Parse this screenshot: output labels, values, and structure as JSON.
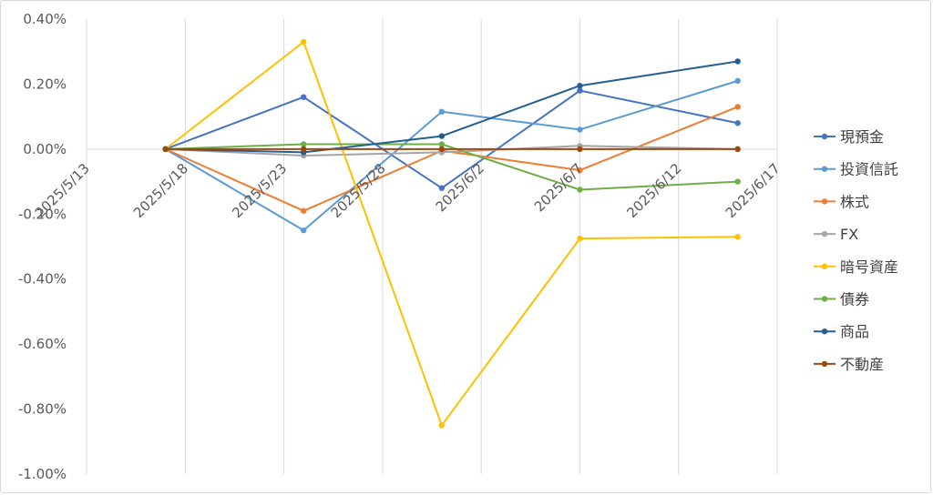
{
  "chart_data": {
    "type": "line",
    "title": "",
    "xlabel": "",
    "ylabel": "",
    "x_range": [
      "2025/5/13",
      "2025/6/17"
    ],
    "x_ticks": [
      "2025/5/13",
      "2025/5/18",
      "2025/5/23",
      "2025/5/28",
      "2025/6/2",
      "2025/6/7",
      "2025/6/12",
      "2025/6/17"
    ],
    "ylim": [
      -1.0,
      0.4
    ],
    "y_ticks": [
      0.4,
      0.2,
      0.0,
      -0.2,
      -0.4,
      -0.6,
      -0.8,
      -1.0
    ],
    "y_tick_labels": [
      "0.40%",
      "0.20%",
      "0.00%",
      "-0.20%",
      "-0.40%",
      "-0.60%",
      "-0.80%",
      "-1.00%"
    ],
    "y_unit": "%",
    "grid": {
      "vertical": true,
      "horizontal": false
    },
    "legend_position": "right",
    "x": [
      "2025/5/17",
      "2025/5/24",
      "2025/5/31",
      "2025/6/7",
      "2025/6/15"
    ],
    "series": [
      {
        "name": "現預金",
        "color": "#4472c4",
        "values": [
          0.0,
          0.16,
          -0.12,
          0.18,
          0.08
        ]
      },
      {
        "name": "投資信託",
        "color": "#5b9bd5",
        "values": [
          0.0,
          -0.25,
          0.115,
          0.06,
          0.21
        ]
      },
      {
        "name": "株式",
        "color": "#ed7d31",
        "values": [
          0.0,
          -0.19,
          -0.005,
          -0.065,
          0.13
        ]
      },
      {
        "name": "FX",
        "color": "#a5a5a5",
        "values": [
          0.0,
          -0.02,
          -0.01,
          0.01,
          0.0
        ]
      },
      {
        "name": "暗号資産",
        "color": "#ffc000",
        "values": [
          0.0,
          0.33,
          -0.85,
          -0.275,
          -0.27
        ]
      },
      {
        "name": "債券",
        "color": "#70ad47",
        "values": [
          0.0,
          0.015,
          0.015,
          -0.125,
          -0.1
        ]
      },
      {
        "name": "商品",
        "color": "#255e91",
        "values": [
          0.0,
          -0.01,
          0.04,
          0.195,
          0.27
        ]
      },
      {
        "name": "不動産",
        "color": "#9e480e",
        "values": [
          0.0,
          0.0,
          0.0,
          0.0,
          0.0
        ]
      }
    ]
  }
}
